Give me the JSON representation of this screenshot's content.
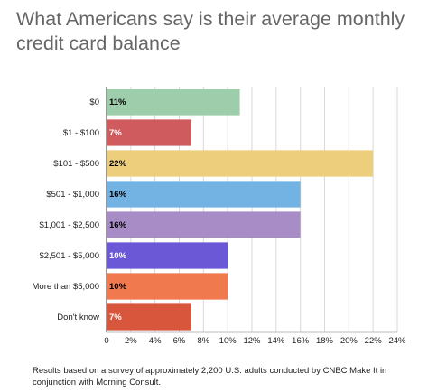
{
  "chart_data": {
    "type": "bar",
    "orientation": "horizontal",
    "title": "What Americans say is their average monthly credit card balance",
    "categories": [
      "$0",
      "$1 - $100",
      "$101 - $500",
      "$501 - $1,000",
      "$1,001 - $2,500",
      "$2,501 - $5,000",
      "More than $5,000",
      "Don't know"
    ],
    "values": [
      11,
      7,
      22,
      16,
      16,
      10,
      10,
      7
    ],
    "data_labels": [
      "11%",
      "7%",
      "22%",
      "16%",
      "16%",
      "10%",
      "10%",
      "7%"
    ],
    "colors": [
      "#9dcdaa",
      "#cf5b5e",
      "#ecce7d",
      "#73b3e3",
      "#a78cc6",
      "#6a58d6",
      "#f07a4e",
      "#d8573c"
    ],
    "label_colors": [
      "#000000",
      "#ffffff",
      "#000000",
      "#000000",
      "#000000",
      "#ffffff",
      "#000000",
      "#ffffff"
    ],
    "xlim": [
      0,
      24
    ],
    "x_ticks": [
      0,
      2,
      4,
      6,
      8,
      10,
      12,
      14,
      16,
      18,
      20,
      22,
      24
    ],
    "x_tick_labels": [
      "0",
      "2%",
      "4%",
      "6%",
      "8%",
      "10%",
      "12%",
      "14%",
      "16%",
      "18%",
      "20%",
      "22%",
      "24%"
    ],
    "grid": true,
    "legend": "none"
  },
  "footnote": "Results based on a survey of approximately 2,200 U.S. adults conducted by CNBC Make It in conjunction with Morning Consult."
}
